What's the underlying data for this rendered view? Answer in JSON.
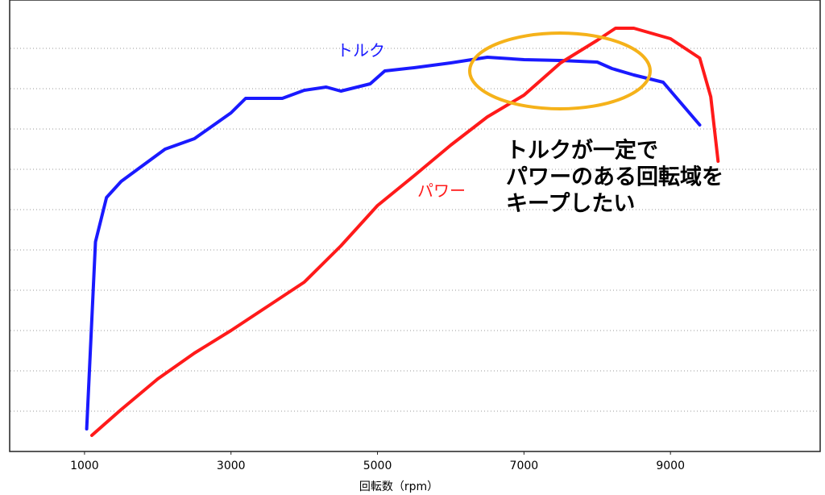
{
  "chart_data": {
    "type": "line",
    "x_label": "回転数（rpm）",
    "xlim": [
      0,
      11000
    ],
    "xticks": [
      1000,
      3000,
      5000,
      7000,
      9000
    ],
    "ylim": [
      0,
      11
    ],
    "yticks": [
      1,
      2,
      3,
      4,
      5,
      6,
      7,
      8,
      9,
      10
    ],
    "grid": true,
    "series": [
      {
        "name": "トルク",
        "color": "#1a1aff",
        "x": [
          1030,
          1150,
          1300,
          1500,
          1800,
          2100,
          2500,
          3000,
          3200,
          3700,
          4000,
          4300,
          4500,
          4900,
          5100,
          5500,
          6000,
          6500,
          7000,
          7500,
          8000,
          8200,
          8500,
          8900,
          9400
        ],
        "values": [
          0.56,
          5.2,
          6.3,
          6.7,
          7.1,
          7.5,
          7.76,
          8.4,
          8.76,
          8.76,
          8.96,
          9.04,
          8.94,
          9.12,
          9.44,
          9.52,
          9.64,
          9.78,
          9.72,
          9.7,
          9.66,
          9.5,
          9.34,
          9.16,
          8.1
        ]
      },
      {
        "name": "パワー",
        "color": "#ff1a1a",
        "x": [
          1100,
          1500,
          2000,
          2500,
          3000,
          3500,
          4000,
          4500,
          5000,
          5500,
          6000,
          6500,
          7000,
          7500,
          8000,
          8250,
          8500,
          9000,
          9400,
          9550,
          9650
        ],
        "values": [
          0.4,
          1.04,
          1.8,
          2.44,
          3.0,
          3.6,
          4.2,
          5.1,
          6.1,
          6.84,
          7.6,
          8.3,
          8.84,
          9.64,
          10.2,
          10.5,
          10.5,
          10.24,
          9.76,
          8.8,
          7.2
        ]
      }
    ],
    "annotation": [
      "トルクが一定で",
      "パワーのある回転域を",
      "キープしたい"
    ]
  }
}
